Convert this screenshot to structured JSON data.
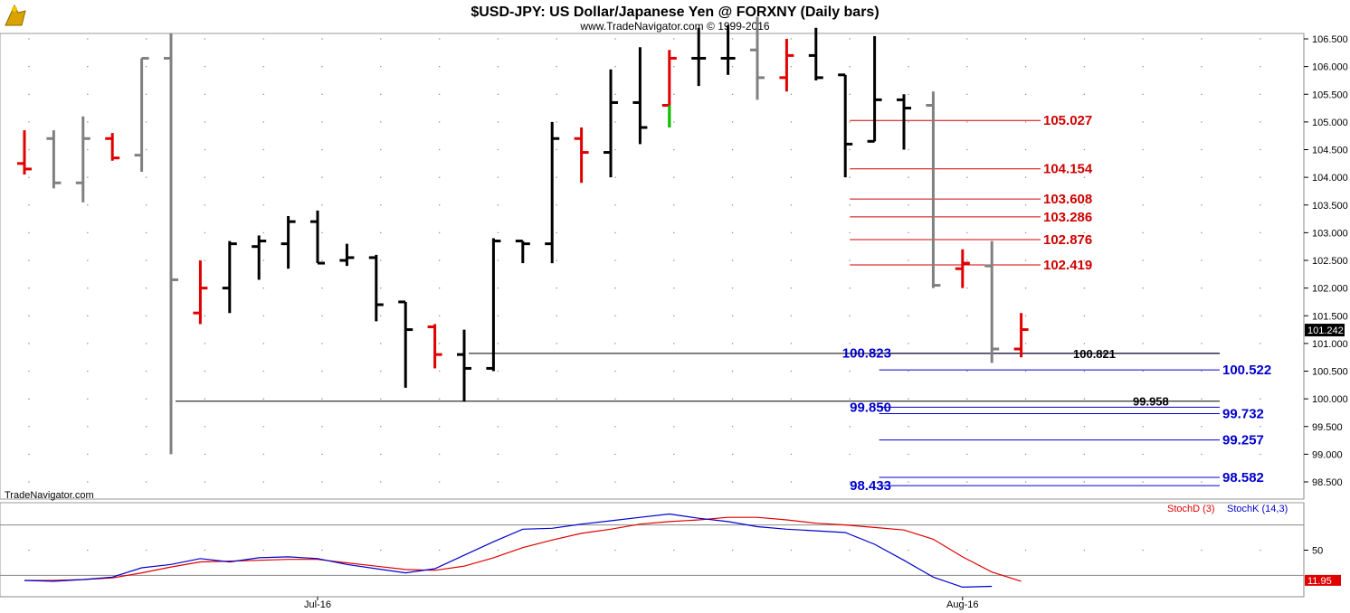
{
  "header": {
    "title": "$USD-JPY:  US Dollar/Japanese Yen @ FORXNY  (Daily bars)",
    "subtitle": "www.TradeNavigator.com © 1999-2016",
    "watermark": "TradeNavigator.com",
    "logo_icon": "tradenavigator-logo-icon"
  },
  "colors": {
    "up_bar": "#000000",
    "down_bar": "#e00000",
    "neutral_bar": "#808080",
    "support_line": "#0000cc",
    "resistance_line": "#d00000",
    "stoch_d": "#e00000",
    "stoch_k": "#0000cc"
  },
  "chart_data": [
    {
      "type": "ohlc",
      "title": "$USD-JPY:  US Dollar/Japanese Yen @ FORXNY  (Daily bars)",
      "ylim": [
        98.2,
        106.6
      ],
      "y_ticks": [
        "106.500",
        "106.000",
        "105.500",
        "105.000",
        "104.500",
        "104.000",
        "103.500",
        "103.000",
        "102.500",
        "102.000",
        "101.500",
        "101.000",
        "100.500",
        "100.000",
        "99.500",
        "99.000",
        "98.500"
      ],
      "x_labels": [
        {
          "label": "Jul-16",
          "bar": 10
        },
        {
          "label": "Aug-16",
          "bar": 32
        }
      ],
      "last_price": "101.242",
      "bars": [
        {
          "o": 104.25,
          "h": 104.85,
          "l": 104.05,
          "c": 104.15,
          "color": "red"
        },
        {
          "o": 104.7,
          "h": 104.85,
          "l": 103.8,
          "c": 103.9,
          "color": "gray"
        },
        {
          "o": 103.9,
          "h": 105.1,
          "l": 103.55,
          "c": 104.7,
          "color": "gray"
        },
        {
          "o": 104.7,
          "h": 104.8,
          "l": 104.3,
          "c": 104.35,
          "color": "red"
        },
        {
          "o": 104.4,
          "h": 106.15,
          "l": 104.1,
          "c": 106.15,
          "color": "gray"
        },
        {
          "o": 106.15,
          "h": 106.6,
          "l": 99.0,
          "c": 102.15,
          "color": "gray"
        },
        {
          "o": 101.55,
          "h": 102.5,
          "l": 101.35,
          "c": 102.0,
          "color": "red"
        },
        {
          "o": 102.0,
          "h": 102.85,
          "l": 101.55,
          "c": 102.8,
          "color": "black"
        },
        {
          "o": 102.75,
          "h": 102.95,
          "l": 102.15,
          "c": 102.85,
          "color": "black"
        },
        {
          "o": 102.8,
          "h": 103.3,
          "l": 102.35,
          "c": 103.2,
          "color": "black"
        },
        {
          "o": 103.2,
          "h": 103.4,
          "l": 102.45,
          "c": 102.45,
          "color": "black"
        },
        {
          "o": 102.5,
          "h": 102.8,
          "l": 102.4,
          "c": 102.55,
          "color": "black"
        },
        {
          "o": 102.55,
          "h": 102.6,
          "l": 101.4,
          "c": 101.7,
          "color": "black"
        },
        {
          "o": 101.75,
          "h": 101.75,
          "l": 100.2,
          "c": 101.25,
          "color": "black"
        },
        {
          "o": 101.3,
          "h": 101.35,
          "l": 100.55,
          "c": 100.8,
          "color": "red"
        },
        {
          "o": 100.8,
          "h": 101.25,
          "l": 99.95,
          "c": 100.55,
          "color": "black"
        },
        {
          "o": 100.55,
          "h": 102.9,
          "l": 100.5,
          "c": 102.85,
          "color": "black"
        },
        {
          "o": 102.85,
          "h": 102.85,
          "l": 102.45,
          "c": 102.8,
          "color": "black"
        },
        {
          "o": 102.8,
          "h": 105.0,
          "l": 102.45,
          "c": 104.7,
          "color": "black"
        },
        {
          "o": 104.7,
          "h": 104.9,
          "l": 103.9,
          "c": 104.45,
          "color": "red"
        },
        {
          "o": 104.45,
          "h": 105.95,
          "l": 104.0,
          "c": 105.35,
          "color": "black"
        },
        {
          "o": 105.35,
          "h": 106.35,
          "l": 104.6,
          "c": 104.9,
          "color": "black"
        },
        {
          "o": 105.3,
          "h": 106.3,
          "l": 104.9,
          "c": 106.15,
          "color": "red",
          "low_tail_color": "green"
        },
        {
          "o": 106.15,
          "h": 106.7,
          "l": 105.65,
          "c": 106.15,
          "color": "black"
        },
        {
          "o": 106.15,
          "h": 106.75,
          "l": 105.85,
          "c": 106.15,
          "color": "black"
        },
        {
          "o": 106.3,
          "h": 106.9,
          "l": 105.4,
          "c": 105.8,
          "color": "gray"
        },
        {
          "o": 105.8,
          "h": 106.5,
          "l": 105.55,
          "c": 106.2,
          "color": "red"
        },
        {
          "o": 106.2,
          "h": 106.7,
          "l": 105.75,
          "c": 105.8,
          "color": "black"
        },
        {
          "o": 105.85,
          "h": 105.85,
          "l": 104.0,
          "c": 104.6,
          "color": "black"
        },
        {
          "o": 104.65,
          "h": 106.55,
          "l": 104.65,
          "c": 105.4,
          "color": "black"
        },
        {
          "o": 105.4,
          "h": 105.5,
          "l": 104.5,
          "c": 105.25,
          "color": "black"
        },
        {
          "o": 105.3,
          "h": 105.55,
          "l": 102.0,
          "c": 102.05,
          "color": "gray"
        },
        {
          "o": 102.35,
          "h": 102.7,
          "l": 102.0,
          "c": 102.45,
          "color": "red"
        },
        {
          "o": 102.4,
          "h": 102.85,
          "l": 100.65,
          "c": 100.9,
          "color": "gray"
        },
        {
          "o": 100.9,
          "h": 101.55,
          "l": 100.75,
          "c": 101.25,
          "color": "red"
        }
      ],
      "levels": [
        {
          "value": 105.027,
          "label": "105.027",
          "color": "red",
          "from_bar": 28,
          "label_side": "right"
        },
        {
          "value": 104.154,
          "label": "104.154",
          "color": "red",
          "from_bar": 28,
          "label_side": "right"
        },
        {
          "value": 103.608,
          "label": "103.608",
          "color": "red",
          "from_bar": 28,
          "label_side": "right"
        },
        {
          "value": 103.286,
          "label": "103.286",
          "color": "red",
          "from_bar": 28,
          "label_side": "right"
        },
        {
          "value": 102.876,
          "label": "102.876",
          "color": "red",
          "from_bar": 28,
          "label_side": "right"
        },
        {
          "value": 102.419,
          "label": "102.419",
          "color": "red",
          "from_bar": 28,
          "label_side": "right"
        },
        {
          "value": 100.823,
          "label": "100.823",
          "color": "blue",
          "from_bar": 29,
          "label_side": "left"
        },
        {
          "value": 100.522,
          "label": "100.522",
          "color": "blue",
          "from_bar": 29,
          "label_side": "far-right"
        },
        {
          "value": 99.85,
          "label": "99.850",
          "color": "blue",
          "from_bar": 29,
          "label_side": "left"
        },
        {
          "value": 99.732,
          "label": "99.732",
          "color": "blue",
          "from_bar": 29,
          "label_side": "far-right"
        },
        {
          "value": 99.257,
          "label": "99.257",
          "color": "blue",
          "from_bar": 29,
          "label_side": "far-right"
        },
        {
          "value": 98.582,
          "label": "98.582",
          "color": "blue",
          "from_bar": 29,
          "label_side": "far-right"
        },
        {
          "value": 98.433,
          "label": "98.433",
          "color": "blue",
          "from_bar": 29,
          "label_side": "left"
        },
        {
          "value": 100.821,
          "label": "100.821",
          "color": "black",
          "from_bar": 15,
          "label_side": "mid-right"
        },
        {
          "value": 99.958,
          "label": "99.958",
          "color": "black",
          "from_bar": 5,
          "label_side": "mid-right"
        }
      ]
    },
    {
      "type": "line",
      "title": "Stochastics",
      "ylim": [
        0,
        100
      ],
      "y_ticks": [
        "50"
      ],
      "reference_lines": [
        80,
        20
      ],
      "last_value": "11.95",
      "series": [
        {
          "name": "StochD (3)",
          "color": "red",
          "values": [
            14,
            14,
            15,
            17,
            23,
            30,
            36,
            37,
            38,
            39,
            39,
            35,
            31,
            27,
            26,
            31,
            41,
            53,
            62,
            70,
            75,
            81,
            84,
            86,
            89,
            89,
            86,
            82,
            80,
            77,
            74,
            63,
            42,
            24,
            13
          ]
        },
        {
          "name": "StochK (14,3)",
          "color": "blue",
          "values": [
            14,
            13,
            15,
            18,
            29,
            33,
            40,
            36,
            41,
            42,
            40,
            33,
            28,
            23,
            28,
            44,
            60,
            75,
            76,
            81,
            85,
            89,
            93,
            88,
            84,
            78,
            75,
            73,
            71,
            57,
            38,
            18,
            6,
            7,
            null
          ]
        }
      ]
    }
  ]
}
